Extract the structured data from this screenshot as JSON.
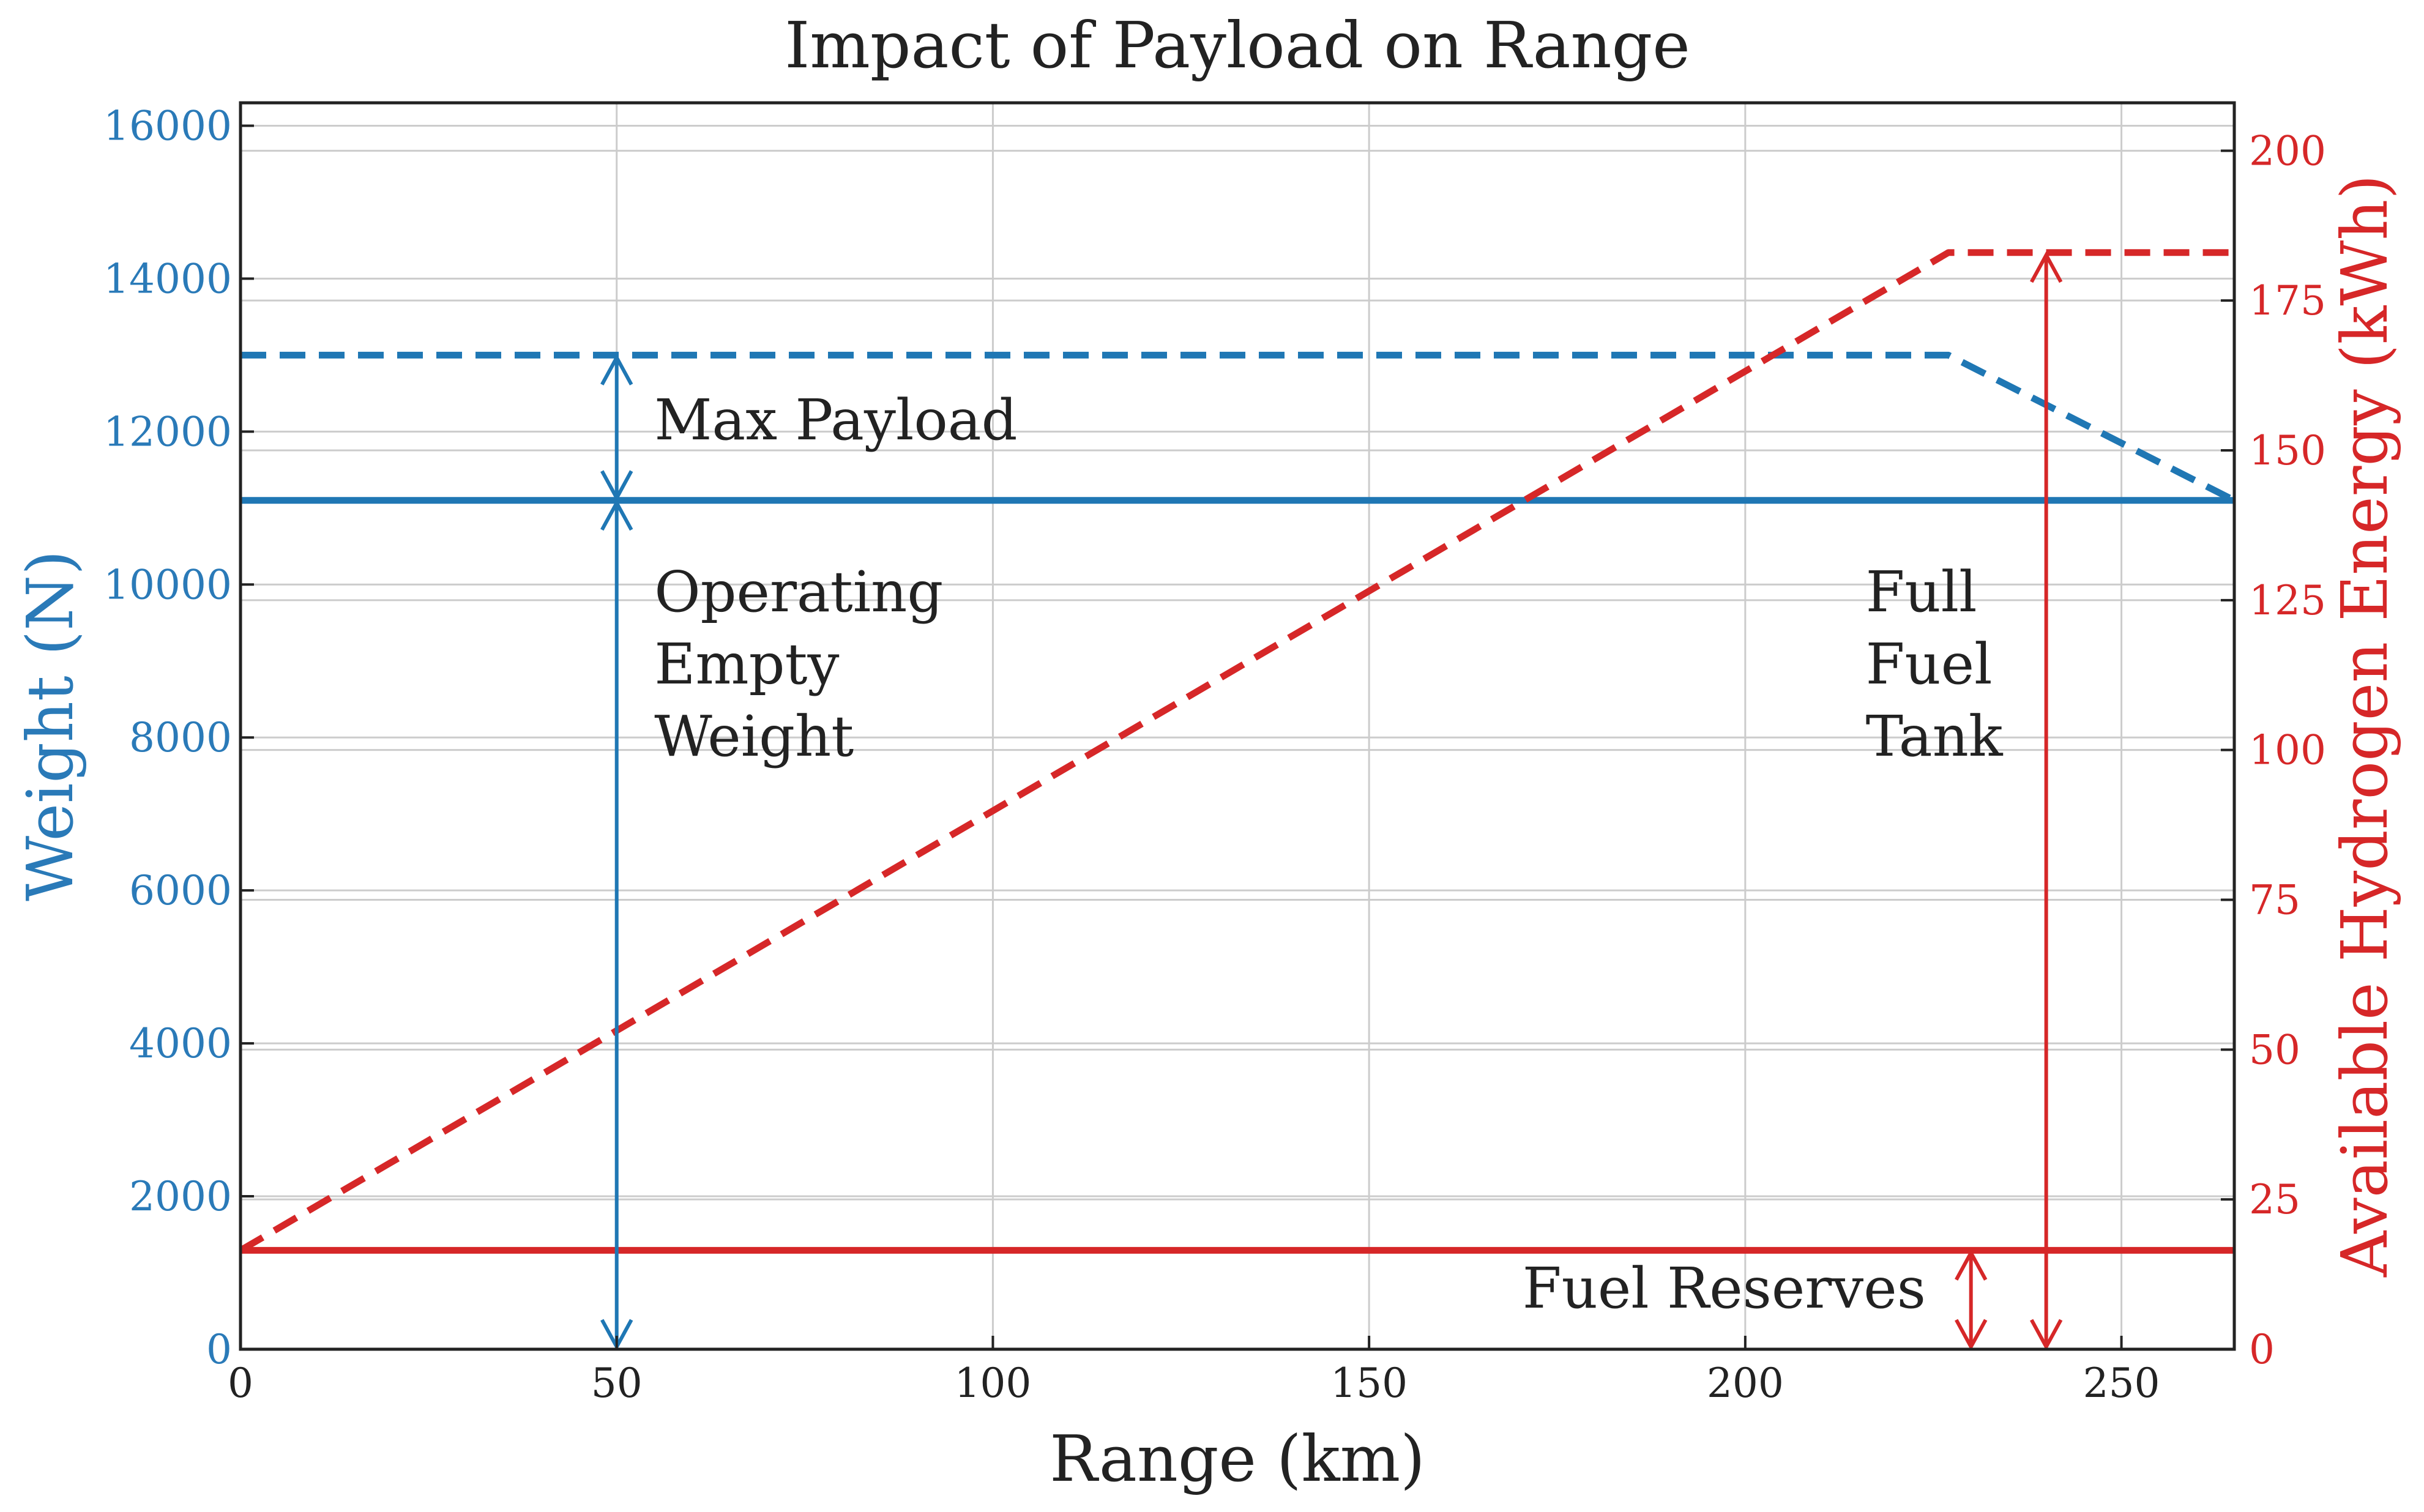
{
  "chart_data": {
    "type": "line",
    "title": "Impact of Payload on Range",
    "xlabel": "Range (km)",
    "ylabel_left": "Weight (N)",
    "ylabel_right": "Available Hydrogen Energy (kWh)",
    "xlim": [
      0,
      265
    ],
    "ylim_left": [
      0,
      16300
    ],
    "ylim_right": [
      0,
      208
    ],
    "x_ticks": [
      "0",
      "50",
      "100",
      "150",
      "200",
      "250"
    ],
    "y_left_ticks": [
      "0",
      "2000",
      "4000",
      "6000",
      "8000",
      "10000",
      "12000",
      "14000",
      "16000"
    ],
    "y_right_ticks": [
      "0",
      "25",
      "50",
      "75",
      "100",
      "125",
      "150",
      "175",
      "200"
    ],
    "grid": true,
    "colors": {
      "weight": "#1f77b4",
      "energy": "#d62728",
      "weight_tick_text": "#2a7ab8"
    },
    "series": [
      {
        "axis": "left",
        "style": "dashed",
        "color": "#1f77b4",
        "x": [
          0,
          227,
          265
        ],
        "y": [
          13000,
          13000,
          11100
        ]
      },
      {
        "axis": "left",
        "style": "solid",
        "color": "#1f77b4",
        "x": [
          0,
          265
        ],
        "y": [
          11100,
          11100
        ]
      },
      {
        "axis": "right",
        "style": "dashed",
        "color": "#d62728",
        "x": [
          0,
          227,
          265
        ],
        "y": [
          16.5,
          183,
          183
        ]
      },
      {
        "axis": "right",
        "style": "solid",
        "color": "#d62728",
        "x": [
          0,
          265
        ],
        "y": [
          16.5,
          16.5
        ]
      }
    ],
    "annotations": [
      {
        "label_lines": [
          "Max Payload"
        ],
        "text_x": 55,
        "text_y_left": 11900,
        "color": "#1f77b4",
        "arrow": {
          "axis": "left",
          "x": 50,
          "from": 11100,
          "to": 13000
        }
      },
      {
        "label_lines": [
          "Operating",
          "Empty",
          "Weight"
        ],
        "text_x": 55,
        "text_y_left": 9650,
        "color": "#1f77b4",
        "arrow": {
          "axis": "left",
          "x": 50,
          "from": 0,
          "to": 11100
        }
      },
      {
        "label_lines": [
          "Full",
          "Fuel",
          "Tank"
        ],
        "text_x": 216,
        "text_y_left": 9650,
        "color": "#d62728",
        "arrow": {
          "axis": "right",
          "x": 240,
          "from": 0,
          "to": 183
        }
      },
      {
        "label_lines": [
          "Fuel Reserves"
        ],
        "text_x": 224,
        "text_y_left": 545,
        "anchor": "end",
        "color": "#d62728",
        "arrow": {
          "axis": "right",
          "x": 230,
          "from": 0,
          "to": 16.5
        }
      }
    ]
  }
}
